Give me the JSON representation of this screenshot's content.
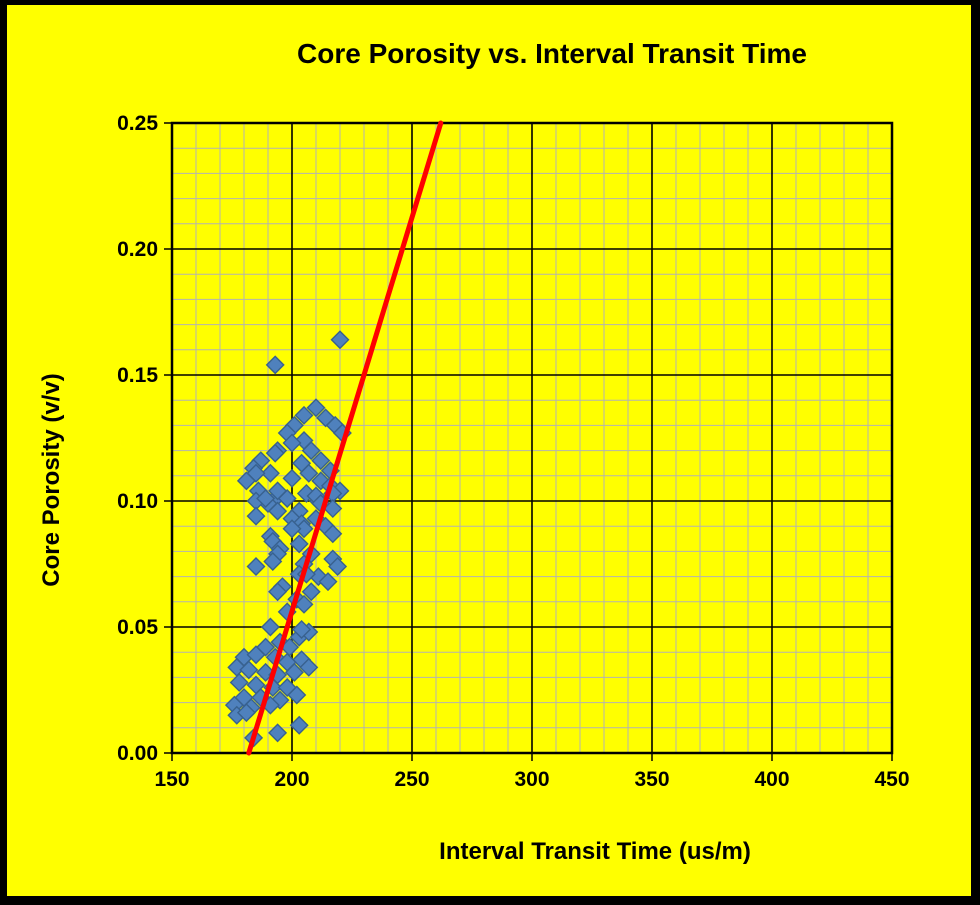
{
  "window": {
    "background_color": "#ffff00",
    "border_color": "#000000"
  },
  "chart_data": {
    "type": "scatter",
    "title": "Core Porosity vs. Interval Transit Time",
    "xlabel": "Interval Transit Time (us/m)",
    "ylabel": "Core Porosity (v/v)",
    "xlim": [
      150,
      450
    ],
    "ylim": [
      0,
      0.25
    ],
    "x_major_step": 50,
    "x_minor_step": 10,
    "y_major_step": 0.05,
    "y_minor_step": 0.01,
    "x_ticks": [
      "150",
      "200",
      "250",
      "300",
      "350",
      "400",
      "450"
    ],
    "y_ticks": [
      "0.00",
      "0.05",
      "0.10",
      "0.15",
      "0.20",
      "0.25"
    ],
    "grid": {
      "major_color": "#000000",
      "minor_color": "#b3b3b3",
      "frame_color": "#000000"
    },
    "marker": {
      "shape": "diamond",
      "fill": "#4f81bd",
      "stroke": "#38618f",
      "size": 17
    },
    "trendline": {
      "x1": 182,
      "y1": 0.0,
      "x2": 262,
      "y2": 0.25,
      "color": "#ff0000",
      "width": 5
    },
    "series_name": "Core Porosity",
    "points": [
      [
        220,
        0.164
      ],
      [
        193,
        0.154
      ],
      [
        210,
        0.137
      ],
      [
        205,
        0.134
      ],
      [
        214,
        0.133
      ],
      [
        201,
        0.13
      ],
      [
        218,
        0.13
      ],
      [
        198,
        0.127
      ],
      [
        221,
        0.127
      ],
      [
        205,
        0.124
      ],
      [
        200,
        0.123
      ],
      [
        208,
        0.12
      ],
      [
        194,
        0.12
      ],
      [
        212,
        0.116
      ],
      [
        204,
        0.115
      ],
      [
        187,
        0.116
      ],
      [
        216,
        0.112
      ],
      [
        207,
        0.111
      ],
      [
        193,
        0.119
      ],
      [
        184,
        0.113
      ],
      [
        191,
        0.111
      ],
      [
        185,
        0.111
      ],
      [
        181,
        0.108
      ],
      [
        186,
        0.104
      ],
      [
        200,
        0.109
      ],
      [
        212,
        0.108
      ],
      [
        216,
        0.106
      ],
      [
        220,
        0.104
      ],
      [
        206,
        0.103
      ],
      [
        217,
        0.103
      ],
      [
        198,
        0.101
      ],
      [
        211,
        0.1
      ],
      [
        192,
        0.1
      ],
      [
        190,
        0.099
      ],
      [
        185,
        0.1
      ],
      [
        189,
        0.101
      ],
      [
        194,
        0.104
      ],
      [
        210,
        0.102
      ],
      [
        212,
        0.099
      ],
      [
        217,
        0.097
      ],
      [
        203,
        0.096
      ],
      [
        194,
        0.096
      ],
      [
        200,
        0.093
      ],
      [
        185,
        0.094
      ],
      [
        204,
        0.091
      ],
      [
        210,
        0.093
      ],
      [
        214,
        0.09
      ],
      [
        217,
        0.087
      ],
      [
        205,
        0.089
      ],
      [
        200,
        0.089
      ],
      [
        191,
        0.086
      ],
      [
        192,
        0.084
      ],
      [
        203,
        0.083
      ],
      [
        195,
        0.081
      ],
      [
        208,
        0.079
      ],
      [
        194,
        0.079
      ],
      [
        185,
        0.074
      ],
      [
        192,
        0.076
      ],
      [
        205,
        0.075
      ],
      [
        217,
        0.077
      ],
      [
        219,
        0.074
      ],
      [
        211,
        0.07
      ],
      [
        203,
        0.071
      ],
      [
        206,
        0.071
      ],
      [
        215,
        0.068
      ],
      [
        196,
        0.066
      ],
      [
        208,
        0.064
      ],
      [
        194,
        0.064
      ],
      [
        202,
        0.061
      ],
      [
        198,
        0.056
      ],
      [
        205,
        0.059
      ],
      [
        203,
        0.046
      ],
      [
        207,
        0.048
      ],
      [
        204,
        0.049
      ],
      [
        191,
        0.05
      ],
      [
        195,
        0.044
      ],
      [
        189,
        0.042
      ],
      [
        199,
        0.042
      ],
      [
        180,
        0.038
      ],
      [
        185,
        0.039
      ],
      [
        193,
        0.038
      ],
      [
        204,
        0.037
      ],
      [
        198,
        0.036
      ],
      [
        177,
        0.034
      ],
      [
        182,
        0.033
      ],
      [
        189,
        0.032
      ],
      [
        194,
        0.031
      ],
      [
        201,
        0.032
      ],
      [
        207,
        0.034
      ],
      [
        178,
        0.028
      ],
      [
        185,
        0.027
      ],
      [
        192,
        0.026
      ],
      [
        198,
        0.026
      ],
      [
        180,
        0.022
      ],
      [
        187,
        0.022
      ],
      [
        195,
        0.021
      ],
      [
        202,
        0.023
      ],
      [
        176,
        0.019
      ],
      [
        183,
        0.018
      ],
      [
        191,
        0.019
      ],
      [
        177,
        0.015
      ],
      [
        181,
        0.016
      ],
      [
        203,
        0.011
      ],
      [
        194,
        0.008
      ],
      [
        184,
        0.006
      ]
    ]
  }
}
